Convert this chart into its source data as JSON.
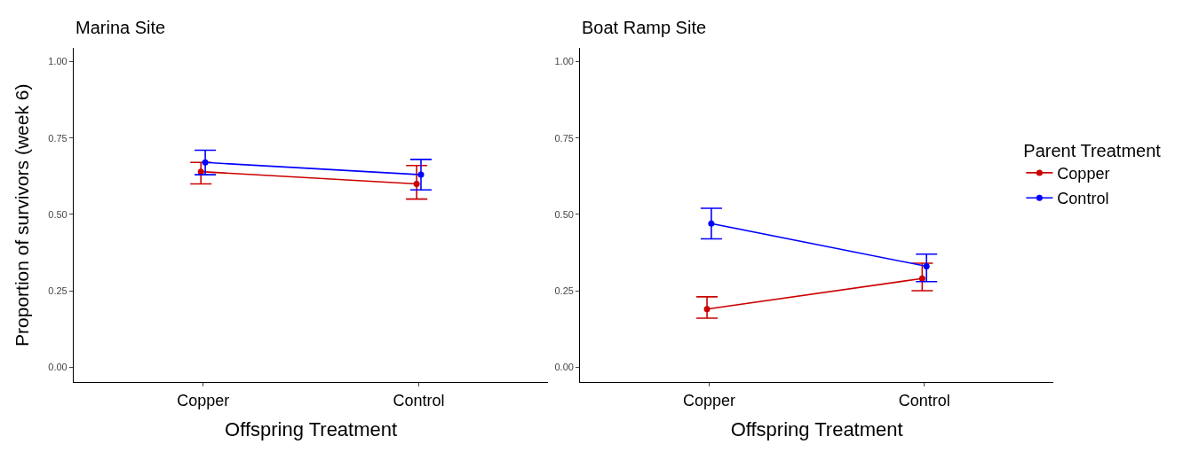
{
  "chart_data": [
    {
      "type": "line",
      "title": "Marina Site",
      "xlabel": "Offspring Treatment",
      "ylabel": "Proportion of survivors (week 6)",
      "categories": [
        "Copper",
        "Control"
      ],
      "ylim": [
        -0.05,
        1.045
      ],
      "yticks": [
        {
          "value": 0,
          "label": "0.00"
        },
        {
          "value": 0.25,
          "label": "0.25"
        },
        {
          "value": 0.5,
          "label": "0.50"
        },
        {
          "value": 0.75,
          "label": "0.75"
        },
        {
          "value": 1,
          "label": "1.00"
        }
      ],
      "marker": "circle",
      "series": [
        {
          "color": "#cc0000",
          "values": [
            0.64,
            0.6
          ],
          "errors": [
            [
              0.6,
              0.67
            ],
            [
              0.55,
              0.66
            ]
          ]
        },
        {
          "color": "#0000ff",
          "values": [
            0.67,
            0.63
          ],
          "errors": [
            [
              0.63,
              0.71
            ],
            [
              0.58,
              0.68
            ]
          ]
        }
      ]
    },
    {
      "type": "line",
      "title": "Boat Ramp Site",
      "xlabel": "Offspring Treatment",
      "categories": [
        "Copper",
        "Control"
      ],
      "ylim": [
        -0.05,
        1.045
      ],
      "yticks": [
        {
          "value": 0,
          "label": "0.00"
        },
        {
          "value": 0.25,
          "label": "0.25"
        },
        {
          "value": 0.5,
          "label": "0.50"
        },
        {
          "value": 0.75,
          "label": "0.75"
        },
        {
          "value": 1,
          "label": "1.00"
        }
      ],
      "marker": "circle",
      "legend": "right",
      "legend_title": "Parent Treatment",
      "series": [
        {
          "name": "Copper",
          "color": "#cc0000",
          "values": [
            0.19,
            0.29
          ],
          "errors": [
            [
              0.16,
              0.23
            ],
            [
              0.25,
              0.34
            ]
          ]
        },
        {
          "name": "Control",
          "color": "#0000ff",
          "values": [
            0.47,
            0.33
          ],
          "errors": [
            [
              0.42,
              0.52
            ],
            [
              0.28,
              0.37
            ]
          ]
        }
      ]
    }
  ]
}
